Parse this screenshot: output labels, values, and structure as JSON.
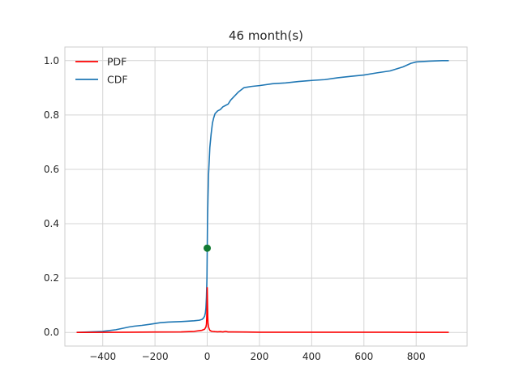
{
  "chart_data": {
    "type": "line",
    "title": "46 month(s)",
    "xlabel": "",
    "ylabel": "",
    "xlim": [
      -545,
      995
    ],
    "ylim": [
      -0.05,
      1.05
    ],
    "x_ticks": [
      -400,
      -200,
      0,
      200,
      400,
      600,
      800
    ],
    "x_tick_labels": [
      "−400",
      "−200",
      "0",
      "200",
      "400",
      "600",
      "800"
    ],
    "y_ticks": [
      0.0,
      0.2,
      0.4,
      0.6,
      0.8,
      1.0
    ],
    "y_tick_labels": [
      "0.0",
      "0.2",
      "0.4",
      "0.6",
      "0.8",
      "1.0"
    ],
    "grid": true,
    "legend": {
      "position": "top-left",
      "entries": [
        "PDF",
        "CDF"
      ]
    },
    "series": [
      {
        "name": "PDF",
        "color": "#ff0000",
        "x": [
          -500,
          -400,
          -300,
          -200,
          -100,
          -50,
          -20,
          -10,
          -5,
          -3,
          -2,
          -1,
          0,
          1,
          2,
          3,
          5,
          8,
          10,
          15,
          20,
          30,
          40,
          50,
          60,
          70,
          80,
          100,
          150,
          200,
          300,
          400,
          500,
          600,
          700,
          800,
          925
        ],
        "y": [
          0.0,
          0.0005,
          0.001,
          0.0015,
          0.002,
          0.004,
          0.008,
          0.012,
          0.02,
          0.03,
          0.05,
          0.09,
          0.165,
          0.11,
          0.06,
          0.035,
          0.02,
          0.012,
          0.008,
          0.005,
          0.004,
          0.003,
          0.0025,
          0.003,
          0.002,
          0.004,
          0.002,
          0.002,
          0.0015,
          0.001,
          0.001,
          0.001,
          0.0008,
          0.0008,
          0.0008,
          0.0005,
          0.0005
        ]
      },
      {
        "name": "CDF",
        "color": "#1f77b4",
        "x": [
          -500,
          -450,
          -400,
          -350,
          -320,
          -300,
          -280,
          -250,
          -220,
          -200,
          -180,
          -150,
          -100,
          -80,
          -50,
          -30,
          -20,
          -15,
          -10,
          -7,
          -5,
          -3,
          -1,
          0,
          1,
          3,
          5,
          8,
          10,
          15,
          20,
          25,
          30,
          40,
          50,
          60,
          70,
          80,
          90,
          100,
          120,
          140,
          150,
          170,
          200,
          250,
          300,
          350,
          400,
          450,
          500,
          550,
          600,
          650,
          700,
          750,
          780,
          800,
          850,
          900,
          925
        ],
        "y": [
          0.0,
          0.002,
          0.004,
          0.01,
          0.016,
          0.02,
          0.023,
          0.026,
          0.03,
          0.033,
          0.036,
          0.038,
          0.04,
          0.041,
          0.043,
          0.045,
          0.048,
          0.052,
          0.06,
          0.072,
          0.09,
          0.13,
          0.2,
          0.3,
          0.4,
          0.5,
          0.58,
          0.64,
          0.68,
          0.73,
          0.77,
          0.79,
          0.805,
          0.815,
          0.82,
          0.83,
          0.835,
          0.84,
          0.855,
          0.865,
          0.885,
          0.9,
          0.902,
          0.905,
          0.908,
          0.915,
          0.918,
          0.923,
          0.927,
          0.93,
          0.937,
          0.942,
          0.947,
          0.955,
          0.962,
          0.977,
          0.99,
          0.995,
          0.998,
          1.0,
          1.0
        ]
      }
    ],
    "marker": {
      "x": 0,
      "y": 0.31,
      "color": "#127a33"
    }
  }
}
